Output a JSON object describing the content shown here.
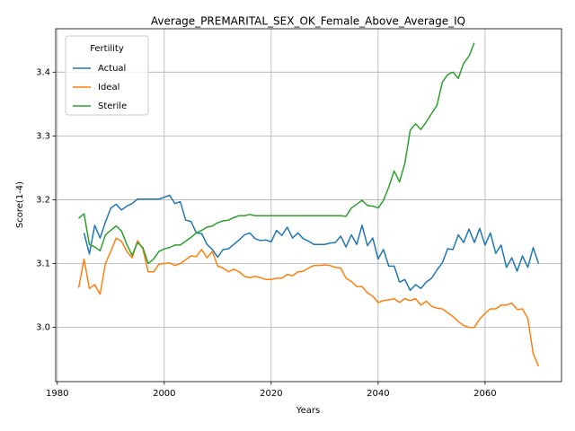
{
  "chart_data": {
    "type": "line",
    "title": "Average_PREMARITAL_SEX_OK_Female_Above_Average_IQ",
    "x_label": "Years",
    "y_label": "Score(1-4)",
    "legend_title": "Fertility",
    "legend": "upper left",
    "grid": true,
    "xlim": [
      1979.7,
      2074.3
    ],
    "xticks": [
      1980,
      2000,
      2020,
      2040,
      2060
    ],
    "ylim": [
      2.915,
      3.468
    ],
    "yticks": [
      {
        "value": 3,
        "label": "3.0"
      },
      3.1,
      3.2,
      3.3,
      3.4
    ],
    "x": [
      1984,
      1985,
      1986,
      1987,
      1988,
      1989,
      1990,
      1991,
      1992,
      1993,
      1994,
      1995,
      1996,
      1997,
      1998,
      1999,
      2000,
      2001,
      2002,
      2003,
      2004,
      2005,
      2006,
      2007,
      2008,
      2009,
      2010,
      2011,
      2012,
      2013,
      2014,
      2015,
      2016,
      2017,
      2018,
      2019,
      2020,
      2021,
      2022,
      2023,
      2024,
      2025,
      2026,
      2027,
      2028,
      2029,
      2030,
      2031,
      2032,
      2033,
      2034,
      2035,
      2036,
      2037,
      2038,
      2039,
      2040,
      2041,
      2042,
      2043,
      2044,
      2045,
      2046,
      2047,
      2048,
      2049,
      2050,
      2051,
      2052,
      2053,
      2054,
      2055,
      2056,
      2057,
      2058,
      2059,
      2060,
      2061,
      2062,
      2063,
      2064,
      2065,
      2066,
      2067,
      2068,
      2069,
      2070
    ],
    "series": [
      {
        "name": "Actual",
        "color": "#1f77b4",
        "values": [
          null,
          3.148,
          3.115,
          3.16,
          3.14,
          3.165,
          3.187,
          3.193,
          3.184,
          3.19,
          3.194,
          3.201,
          3.201,
          3.201,
          3.201,
          3.201,
          3.204,
          3.207,
          3.194,
          3.197,
          3.168,
          3.166,
          3.148,
          3.147,
          3.13,
          3.122,
          3.11,
          3.122,
          3.123,
          3.13,
          3.137,
          3.145,
          3.148,
          3.139,
          3.136,
          3.137,
          3.134,
          3.152,
          3.144,
          3.157,
          3.14,
          3.148,
          3.139,
          3.135,
          3.13,
          3.13,
          3.13,
          3.132,
          3.133,
          3.143,
          3.126,
          3.145,
          3.13,
          3.16,
          3.128,
          3.14,
          3.107,
          3.122,
          3.096,
          3.096,
          3.071,
          3.075,
          3.058,
          3.067,
          3.061,
          3.071,
          3.077,
          3.09,
          3.101,
          3.123,
          3.122,
          3.145,
          3.133,
          3.154,
          3.133,
          3.155,
          3.129,
          3.148,
          3.116,
          3.129,
          3.094,
          3.109,
          3.088,
          3.112,
          3.094,
          3.125,
          3.1
        ]
      },
      {
        "name": "Ideal",
        "color": "#ff7f0e",
        "values": [
          3.062,
          3.107,
          3.061,
          3.067,
          3.052,
          3.1,
          3.119,
          3.14,
          3.135,
          3.119,
          3.109,
          3.136,
          3.123,
          3.087,
          3.087,
          3.099,
          3.1,
          3.101,
          3.097,
          3.1,
          3.106,
          3.112,
          3.111,
          3.122,
          3.109,
          3.119,
          3.096,
          3.093,
          3.087,
          3.091,
          3.087,
          3.08,
          3.078,
          3.08,
          3.078,
          3.075,
          3.075,
          3.077,
          3.077,
          3.083,
          3.081,
          3.087,
          3.088,
          3.093,
          3.097,
          3.097,
          3.098,
          3.097,
          3.094,
          3.093,
          3.077,
          3.072,
          3.064,
          3.064,
          3.054,
          3.049,
          3.039,
          3.042,
          3.043,
          3.045,
          3.039,
          3.045,
          3.042,
          3.045,
          3.035,
          3.041,
          3.033,
          3.03,
          3.029,
          3.023,
          3.017,
          3.009,
          3.003,
          3.0,
          3.0,
          3.013,
          3.022,
          3.029,
          3.029,
          3.035,
          3.035,
          3.038,
          3.028,
          3.029,
          3.014,
          2.959,
          2.939
        ]
      },
      {
        "name": "Sterile",
        "color": "#2ca02c",
        "values": [
          3.171,
          3.178,
          3.13,
          3.126,
          3.12,
          3.145,
          3.152,
          3.159,
          3.151,
          3.13,
          3.113,
          3.133,
          3.125,
          3.1,
          3.107,
          3.119,
          3.123,
          3.125,
          3.129,
          3.129,
          3.135,
          3.141,
          3.148,
          3.152,
          3.157,
          3.159,
          3.164,
          3.167,
          3.168,
          3.172,
          3.175,
          3.175,
          3.177,
          3.175,
          3.175,
          3.175,
          3.175,
          3.175,
          3.175,
          3.175,
          3.175,
          3.175,
          3.175,
          3.175,
          3.175,
          3.175,
          3.175,
          3.175,
          3.175,
          3.175,
          3.174,
          3.187,
          3.193,
          3.199,
          3.191,
          3.19,
          3.187,
          3.199,
          3.22,
          3.245,
          3.228,
          3.257,
          3.309,
          3.319,
          3.31,
          3.322,
          3.335,
          3.348,
          3.384,
          3.396,
          3.4,
          3.39,
          3.414,
          3.425,
          3.446,
          null,
          null,
          null,
          null,
          null,
          null,
          null,
          null,
          null,
          null,
          null,
          null
        ]
      }
    ]
  }
}
